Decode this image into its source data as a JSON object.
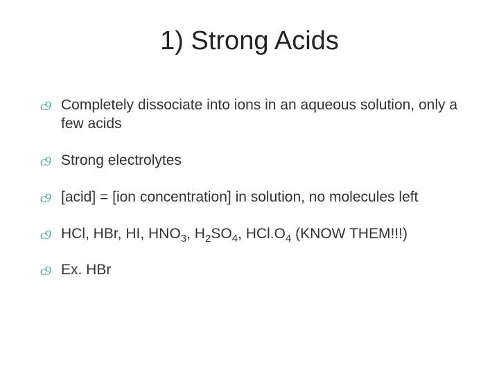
{
  "slide": {
    "title": "1) Strong Acids",
    "title_color": "#222222",
    "title_fontsize": 38,
    "background_color": "#ffffff",
    "bullet_icon_color": "#5aa8b8",
    "body_text_color": "#333333",
    "body_fontsize": 21,
    "bullets": [
      {
        "text": "Completely dissociate into ions in an aqueous solution, only a few acids"
      },
      {
        "text": "Strong electrolytes"
      },
      {
        "text": "[acid]  =  [ion concentration] in solution, no molecules left"
      },
      {
        "segments": [
          {
            "t": "HCl, HBr, HI, HNO"
          },
          {
            "t": "3",
            "sub": true
          },
          {
            "t": ", H"
          },
          {
            "t": "2",
            "sub": true
          },
          {
            "t": "SO"
          },
          {
            "t": "4",
            "sub": true
          },
          {
            "t": ", HCl.O"
          },
          {
            "t": "4",
            "sub": true
          },
          {
            "t": " (KNOW THEM!!!)"
          }
        ]
      },
      {
        "text": "Ex. HBr"
      }
    ]
  }
}
